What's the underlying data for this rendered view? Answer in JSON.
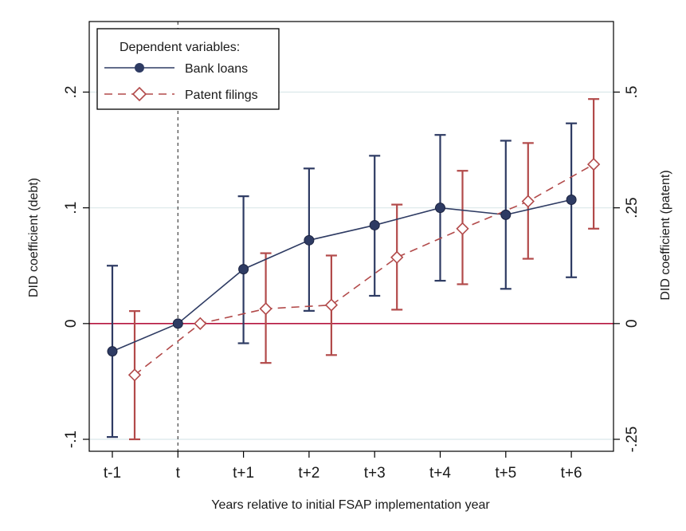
{
  "chart_data": {
    "type": "line",
    "title": "",
    "xlabel": "Years relative to initial FSAP implementation year",
    "ylabel_left": "DID coefficient (debt)",
    "ylabel_right": "DID coefficient (patent)",
    "categories": [
      "t-1",
      "t",
      "t+1",
      "t+2",
      "t+3",
      "t+4",
      "t+5",
      "t+6"
    ],
    "event_marker": "t",
    "left_axis": {
      "ylim": [
        -0.1,
        0.2
      ],
      "ticks": [
        -0.1,
        0,
        0.1,
        0.2
      ],
      "tick_labels": [
        "-.1",
        "0",
        ".1",
        ".2"
      ]
    },
    "right_axis": {
      "ylim": [
        -0.25,
        0.5
      ],
      "ticks": [
        -0.25,
        0,
        0.25,
        0.5
      ],
      "tick_labels": [
        "-.25",
        "0",
        ".25",
        ".5"
      ]
    },
    "grid": true,
    "zero_line_color": "#b5163f",
    "legend": {
      "title": "Dependent variables:",
      "placement": "top-left"
    },
    "series": [
      {
        "name": "Bank loans",
        "axis": "left",
        "color": "#2e3b63",
        "marker": "filled-circle",
        "line_style": "solid",
        "values": [
          -0.024,
          0.0,
          0.047,
          0.072,
          0.085,
          0.1,
          0.094,
          0.107
        ],
        "ci_low": [
          -0.098,
          null,
          -0.017,
          0.011,
          0.024,
          0.037,
          0.03,
          0.04
        ],
        "ci_high": [
          0.05,
          null,
          0.11,
          0.134,
          0.145,
          0.163,
          0.158,
          0.173
        ]
      },
      {
        "name": "Patent filings",
        "axis": "right",
        "color": "#b24a4a",
        "marker": "hollow-diamond",
        "line_style": "dashed",
        "values": [
          -0.111,
          0.0,
          0.032,
          0.04,
          0.143,
          0.205,
          0.264,
          0.344
        ],
        "ci_low": [
          -0.25,
          null,
          -0.085,
          -0.068,
          0.03,
          0.085,
          0.14,
          0.205
        ],
        "ci_high": [
          0.027,
          null,
          0.152,
          0.147,
          0.257,
          0.33,
          0.39,
          0.485
        ]
      }
    ]
  }
}
